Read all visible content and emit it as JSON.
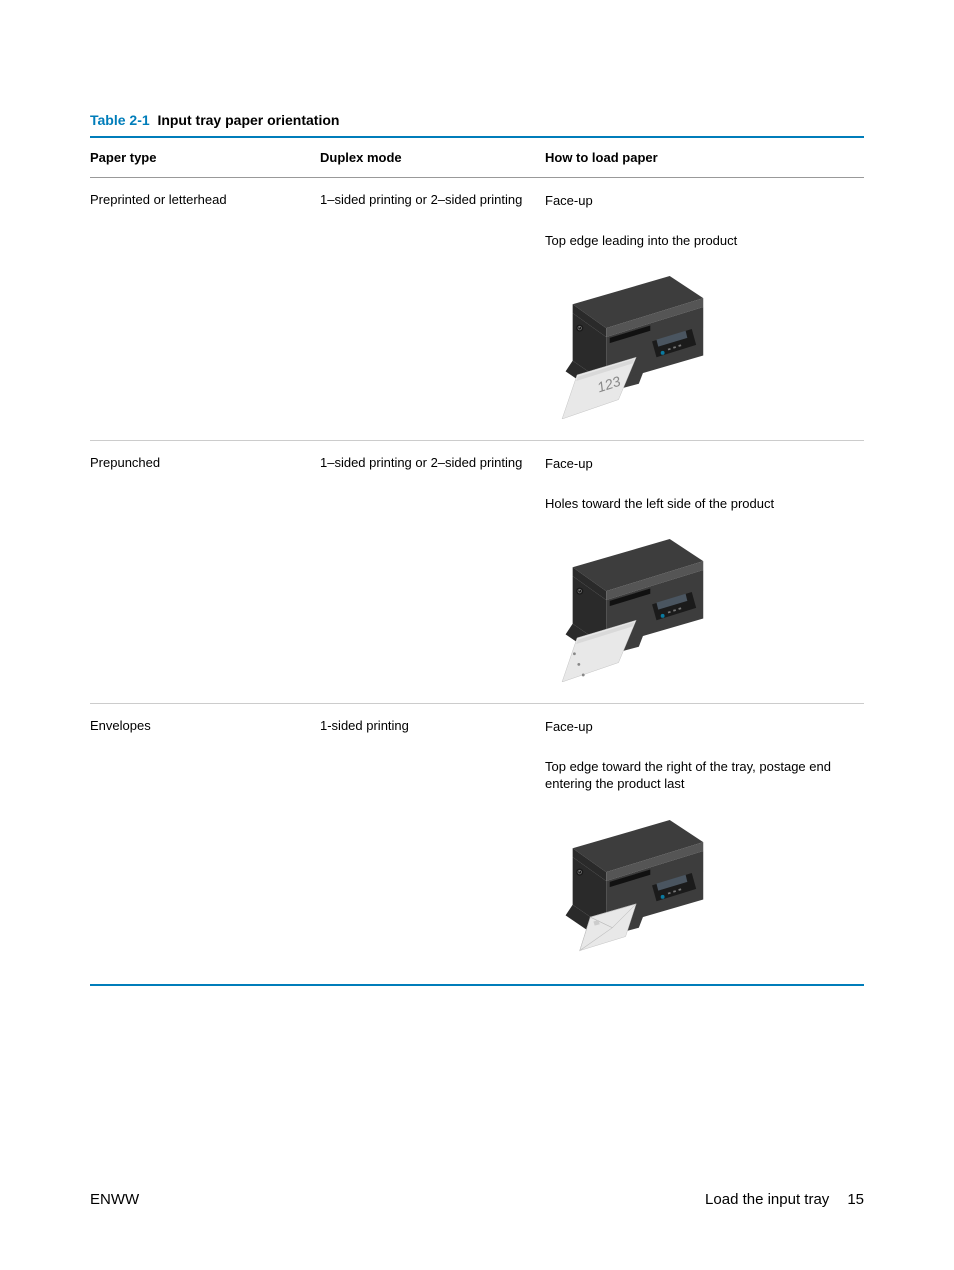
{
  "table": {
    "caption_number": "Table 2-1",
    "caption_title": "Input tray paper orientation",
    "headers": {
      "paper_type": "Paper type",
      "duplex_mode": "Duplex mode",
      "how_to_load": "How to load paper"
    },
    "rows": [
      {
        "paper_type": "Preprinted or letterhead",
        "duplex_mode": "1–sided printing or 2–sided printing",
        "how_line1": "Face-up",
        "how_line2": "Top edge leading into the product",
        "image_variant": "letterhead"
      },
      {
        "paper_type": "Prepunched",
        "duplex_mode": "1–sided printing or 2–sided printing",
        "how_line1": "Face-up",
        "how_line2": "Holes toward the left side of the product",
        "image_variant": "prepunched"
      },
      {
        "paper_type": "Envelopes",
        "duplex_mode": "1-sided printing",
        "how_line1": "Face-up",
        "how_line2": "Top edge toward the right of the tray, postage end entering the product last",
        "image_variant": "envelope"
      }
    ]
  },
  "footer": {
    "left": "ENWW",
    "section": "Load the input tray",
    "page": "15"
  },
  "colors": {
    "accent": "#007dba",
    "text": "#000000",
    "rule_light": "#cccccc",
    "rule_med": "#999999",
    "printer_dark": "#2a2a2a",
    "printer_mid": "#3d3d3d",
    "printer_light": "#555555",
    "paper_light": "#e8e8e8",
    "paper_shadow": "#bdbdbd",
    "lcd": "#4a5560",
    "led": "#0a7aa0"
  },
  "image": {
    "width": 170,
    "height": 150
  }
}
